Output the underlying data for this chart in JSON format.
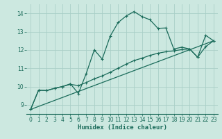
{
  "xlabel": "Humidex (Indice chaleur)",
  "bg_color": "#cce8e0",
  "grid_color": "#aacfc8",
  "line_color": "#1a6b5a",
  "xlim": [
    -0.5,
    23.5
  ],
  "ylim": [
    8.5,
    14.5
  ],
  "xticks": [
    0,
    1,
    2,
    3,
    4,
    5,
    6,
    7,
    8,
    9,
    10,
    11,
    12,
    13,
    14,
    15,
    16,
    17,
    18,
    19,
    20,
    21,
    22,
    23
  ],
  "yticks": [
    9,
    10,
    11,
    12,
    13,
    14
  ],
  "series1_x": [
    0,
    1,
    2,
    3,
    4,
    5,
    6,
    7,
    8,
    9,
    10,
    11,
    12,
    13,
    14,
    15,
    16,
    17,
    18,
    19,
    20,
    21,
    22,
    23
  ],
  "series1_y": [
    8.75,
    9.8,
    9.78,
    9.9,
    10.0,
    10.15,
    9.62,
    10.72,
    12.0,
    11.5,
    12.75,
    13.5,
    13.85,
    14.1,
    13.82,
    13.65,
    13.18,
    13.2,
    12.05,
    12.15,
    12.05,
    11.6,
    12.8,
    12.5
  ],
  "series2_x": [
    0,
    1,
    2,
    3,
    4,
    5,
    6,
    7,
    8,
    9,
    10,
    11,
    12,
    13,
    14,
    15,
    16,
    17,
    18,
    19,
    20,
    21,
    22,
    23
  ],
  "series2_y": [
    8.75,
    9.8,
    9.78,
    9.9,
    10.0,
    10.12,
    10.05,
    10.22,
    10.42,
    10.58,
    10.78,
    11.0,
    11.22,
    11.42,
    11.55,
    11.7,
    11.82,
    11.9,
    11.95,
    12.02,
    12.05,
    11.6,
    12.18,
    12.5
  ],
  "series3_x": [
    0,
    23
  ],
  "series3_y": [
    8.75,
    12.5
  ],
  "marker": "+",
  "markersize": 3.5,
  "linewidth": 0.9
}
